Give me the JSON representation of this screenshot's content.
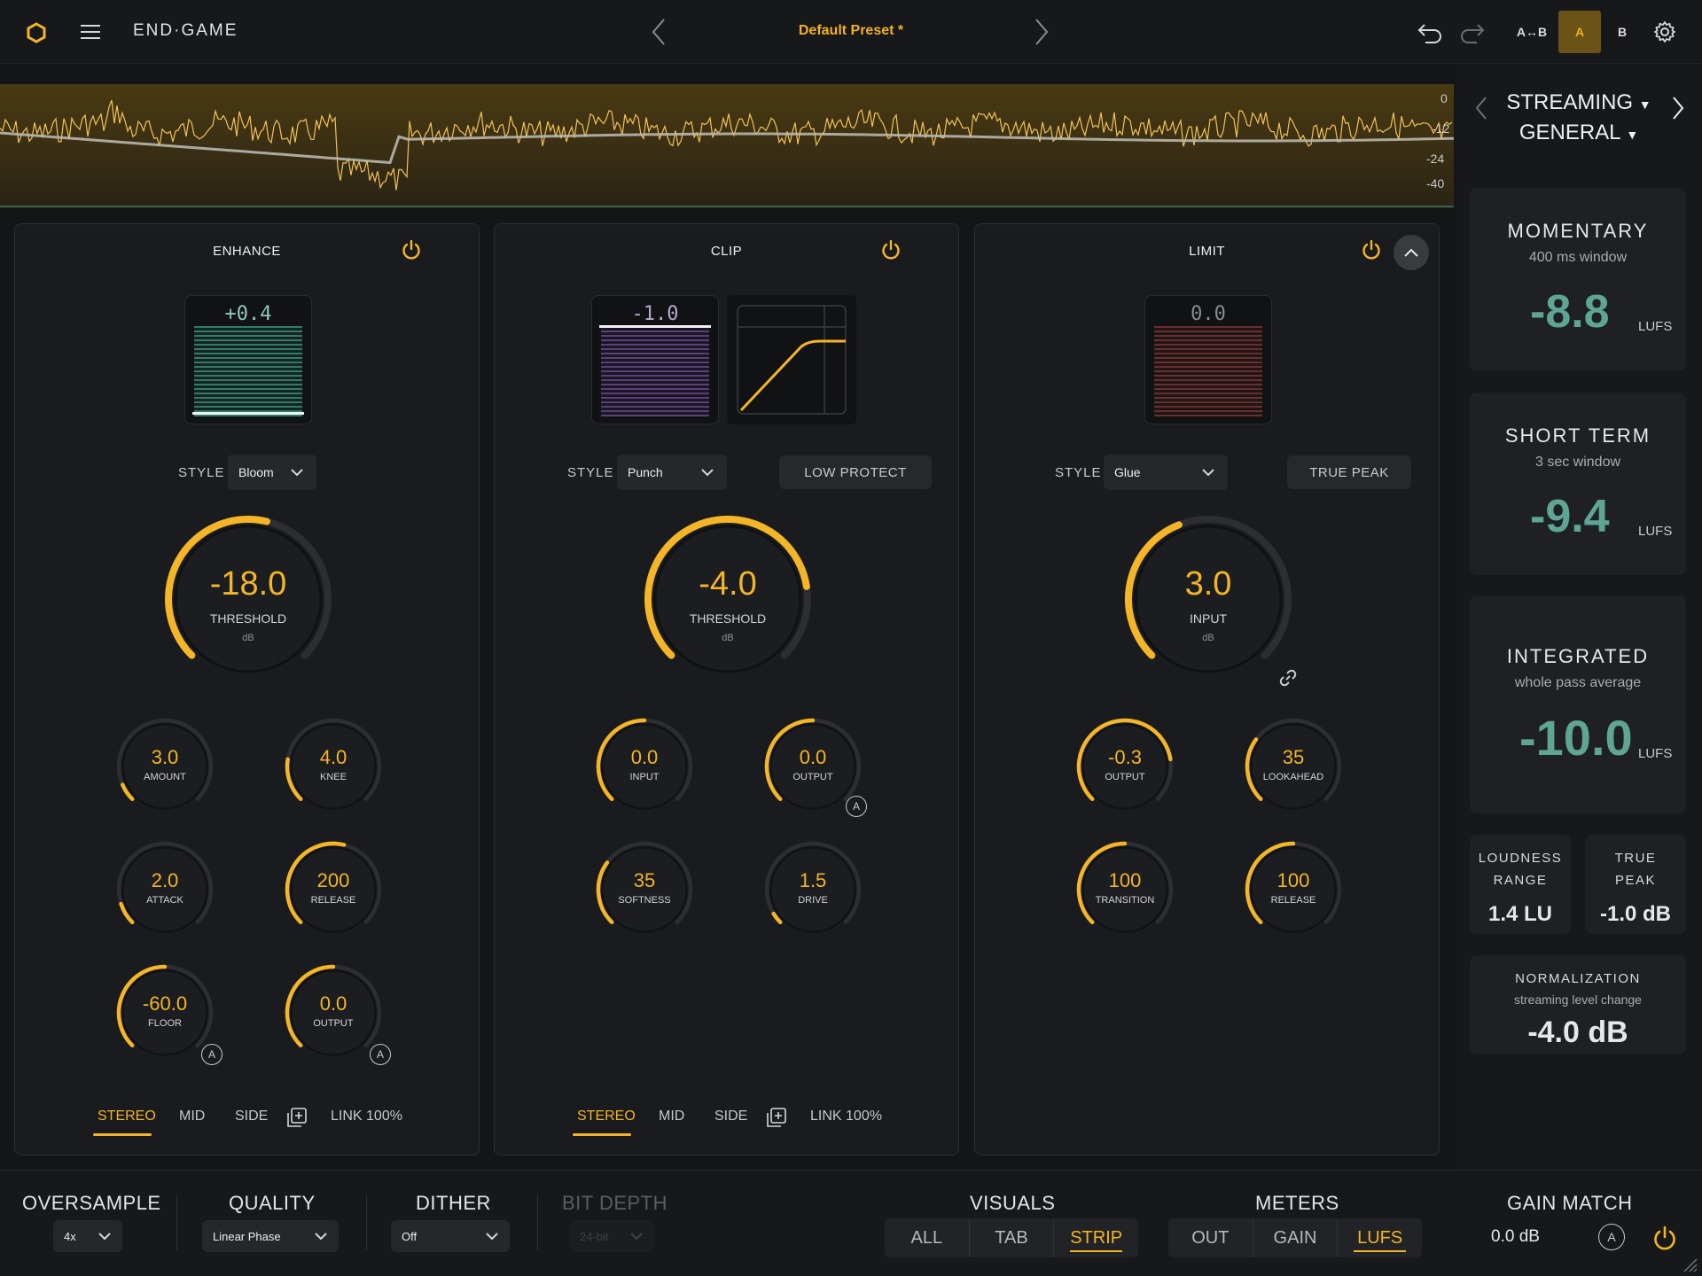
{
  "app": {
    "title": "END·GAME",
    "preset": "Default Preset *"
  },
  "topbar": {
    "ab_copy": "A↔B",
    "a": "A",
    "b": "B"
  },
  "waveform": {
    "db_labels": [
      "0",
      "-12",
      "-24",
      "-40"
    ]
  },
  "enhance": {
    "title": "ENHANCE",
    "meter_value": "+0.4",
    "style_label": "STYLE",
    "style_value": "Bloom",
    "threshold": {
      "value": "-18.0",
      "label": "THRESHOLD",
      "unit": "dB"
    },
    "knobs": [
      {
        "value": "3.0",
        "label": "AMOUNT"
      },
      {
        "value": "4.0",
        "label": "KNEE"
      },
      {
        "value": "2.0",
        "label": "ATTACK"
      },
      {
        "value": "200",
        "label": "RELEASE"
      },
      {
        "value": "-60.0",
        "label": "FLOOR"
      },
      {
        "value": "0.0",
        "label": "OUTPUT"
      }
    ],
    "tabs": [
      "STEREO",
      "MID",
      "SIDE"
    ],
    "link": "LINK 100%"
  },
  "clip": {
    "title": "CLIP",
    "meter_value": "-1.0",
    "style_label": "STYLE",
    "style_value": "Punch",
    "low_protect": "LOW PROTECT",
    "threshold": {
      "value": "-4.0",
      "label": "THRESHOLD",
      "unit": "dB"
    },
    "knobs": [
      {
        "value": "0.0",
        "label": "INPUT"
      },
      {
        "value": "0.0",
        "label": "OUTPUT"
      },
      {
        "value": "35",
        "label": "SOFTNESS"
      },
      {
        "value": "1.5",
        "label": "DRIVE"
      }
    ],
    "tabs": [
      "STEREO",
      "MID",
      "SIDE"
    ],
    "link": "LINK 100%"
  },
  "limit": {
    "title": "LIMIT",
    "meter_value": "0.0",
    "style_label": "STYLE",
    "style_value": "Glue",
    "true_peak": "TRUE PEAK",
    "input": {
      "value": "3.0",
      "label": "INPUT",
      "unit": "dB"
    },
    "knobs": [
      {
        "value": "-0.3",
        "label": "OUTPUT"
      },
      {
        "value": "35",
        "label": "LOOKAHEAD"
      },
      {
        "value": "100",
        "label": "TRANSITION"
      },
      {
        "value": "100",
        "label": "RELEASE"
      }
    ]
  },
  "auto_badge": "A",
  "right": {
    "target_line1": "STREAMING",
    "target_line2": "GENERAL",
    "momentary": {
      "title": "MOMENTARY",
      "sub": "400 ms window",
      "value": "-8.8",
      "unit": "LUFS"
    },
    "short_term": {
      "title": "SHORT TERM",
      "sub": "3 sec window",
      "value": "-9.4",
      "unit": "LUFS"
    },
    "integrated": {
      "title": "INTEGRATED",
      "sub": "whole pass average",
      "value": "-10.0",
      "unit": "LUFS"
    },
    "loudness_range": {
      "title1": "LOUDNESS",
      "title2": "RANGE",
      "value": "1.4 LU"
    },
    "true_peak": {
      "title1": "TRUE",
      "title2": "PEAK",
      "value": "-1.0 dB"
    },
    "normalization": {
      "title": "NORMALIZATION",
      "sub": "streaming level change",
      "value": "-4.0 dB"
    }
  },
  "bottom": {
    "oversample": {
      "label": "OVERSAMPLE",
      "value": "4x"
    },
    "quality": {
      "label": "QUALITY",
      "value": "Linear Phase"
    },
    "dither": {
      "label": "DITHER",
      "value": "Off"
    },
    "bit_depth": {
      "label": "BIT DEPTH",
      "value": "24-bit"
    },
    "visuals": {
      "label": "VISUALS",
      "options": [
        "ALL",
        "TAB",
        "STRIP"
      ],
      "selected": "STRIP"
    },
    "meters": {
      "label": "METERS",
      "options": [
        "OUT",
        "GAIN",
        "LUFS"
      ],
      "selected": "LUFS"
    },
    "gain_match": {
      "label": "GAIN MATCH",
      "value": "0.0 dB"
    }
  },
  "colors": {
    "accent": "#f4b526",
    "teal": "#5fa593",
    "bg": "#141517"
  }
}
